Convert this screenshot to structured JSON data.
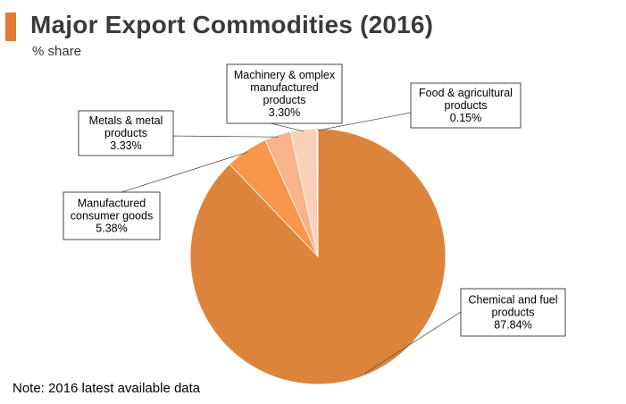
{
  "page": {
    "title": "Major Export Commodities (2016)",
    "subtitle": "% share",
    "note": "Note: 2016 latest available data"
  },
  "colors": {
    "accent": "#e07b36",
    "slices": [
      "#dc843c",
      "#f6964a",
      "#f9b38a",
      "#fbd0b8",
      "#fde7da"
    ]
  },
  "chart_data": {
    "type": "pie",
    "title": "Major Export Commodities (2016)",
    "subtitle": "% share",
    "start_angle_deg": 0,
    "direction": "clockwise",
    "slices": [
      {
        "label": "Chemical and fuel products",
        "value": 87.84,
        "text": [
          "Chemical and fuel",
          "products",
          "87.84%"
        ]
      },
      {
        "label": "Manufactured consumer goods",
        "value": 5.38,
        "text": [
          "Manufactured",
          "consumer goods",
          "5.38%"
        ]
      },
      {
        "label": "Metals & metal products",
        "value": 3.33,
        "text": [
          "Metals & metal",
          "products",
          "3.33%"
        ]
      },
      {
        "label": "Machinery & omplex manufactured products",
        "value": 3.3,
        "text": [
          "Machinery & omplex",
          "manufactured",
          "products",
          "3.30%"
        ]
      },
      {
        "label": "Food & agricultural products",
        "value": 0.15,
        "text": [
          "Food & agricultural",
          "products",
          "0.15%"
        ]
      }
    ]
  }
}
